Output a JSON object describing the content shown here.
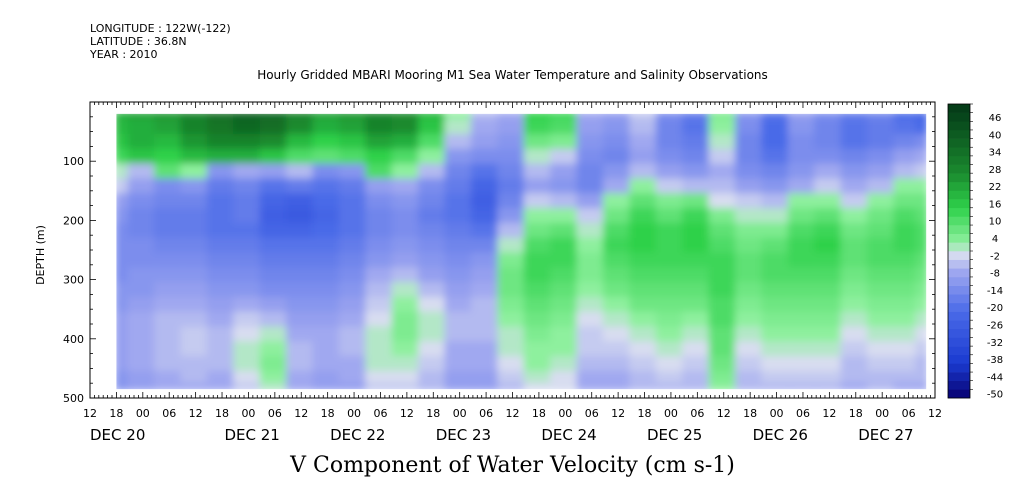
{
  "header": {
    "longitude": "LONGITUDE : 122W(-122)",
    "latitude": "LATITUDE : 36.8N",
    "year": "YEAR : 2010"
  },
  "chart_data": {
    "type": "heatmap",
    "title": "Hourly Gridded MBARI Mooring M1 Sea Water Temperature and Salinity Observations",
    "xlabel": "V Component of Water Velocity (cm s-1)",
    "ylabel": "DEPTH (m)",
    "ylim": [
      500,
      0
    ],
    "y_ticks": [
      "100",
      "200",
      "300",
      "400",
      "500"
    ],
    "x_range_hours": [
      -12,
      180
    ],
    "x_tick_labels": [
      "12",
      "18",
      "00",
      "06",
      "12",
      "18",
      "00",
      "06",
      "12",
      "18",
      "00",
      "06",
      "12",
      "18",
      "00",
      "06",
      "12",
      "18",
      "00",
      "06",
      "12",
      "18",
      "00",
      "06",
      "12",
      "18",
      "00",
      "06",
      "12",
      "18",
      "00",
      "06",
      "12"
    ],
    "date_labels": [
      "DEC 20",
      "DEC 21",
      "DEC 22",
      "DEC 23",
      "DEC 24",
      "DEC 25",
      "DEC 26",
      "DEC 27"
    ],
    "colorbar_labels": [
      "46",
      "40",
      "34",
      "28",
      "22",
      "16",
      "10",
      "4",
      "-2",
      "-8",
      "-14",
      "-20",
      "-26",
      "-32",
      "-38",
      "-44",
      "-50"
    ],
    "colorbar_range": [
      -50,
      52
    ],
    "colorbar_step": 3,
    "colors": {
      "max": "#053d18",
      "strong_pos": "#1a8a2e",
      "pos": "#2ed14a",
      "weak_pos": "#8ef09e",
      "zero": "#d8ddf0",
      "weak_neg": "#a0a8f0",
      "neg": "#4a6ae8",
      "strong_neg": "#1a3ad0",
      "min": "#060070"
    },
    "data_x_range_hours": [
      -6,
      178
    ],
    "data_depth_range": [
      20,
      485
    ],
    "grid_depths": [
      20,
      45,
      70,
      95,
      120,
      145,
      170,
      195,
      220,
      245,
      270,
      295,
      320,
      345,
      370,
      395,
      420,
      445,
      470,
      485
    ],
    "grid_hours": [
      -6,
      0,
      6,
      12,
      18,
      24,
      30,
      36,
      42,
      48,
      54,
      60,
      66,
      72,
      78,
      84,
      90,
      96,
      102,
      108,
      114,
      120,
      126,
      132,
      138,
      144,
      150,
      156,
      162,
      168,
      174,
      178
    ],
    "values": [
      [
        22,
        24,
        26,
        30,
        36,
        40,
        38,
        30,
        24,
        26,
        30,
        28,
        20,
        4,
        -4,
        -6,
        16,
        14,
        -6,
        -8,
        -2,
        -12,
        -16,
        6,
        -10,
        -18,
        -8,
        -12,
        -16,
        -14,
        -20,
        -22
      ],
      [
        20,
        22,
        24,
        30,
        34,
        38,
        36,
        28,
        22,
        24,
        30,
        28,
        18,
        2,
        -6,
        -8,
        14,
        12,
        -8,
        -10,
        -4,
        -14,
        -18,
        4,
        -12,
        -20,
        -10,
        -14,
        -18,
        -16,
        -18,
        -20
      ],
      [
        18,
        22,
        20,
        26,
        30,
        30,
        28,
        20,
        16,
        18,
        24,
        22,
        12,
        -4,
        -8,
        -10,
        8,
        6,
        -10,
        -12,
        -6,
        -14,
        -16,
        2,
        -14,
        -20,
        -12,
        -14,
        -18,
        -16,
        -14,
        -12
      ],
      [
        14,
        18,
        16,
        20,
        22,
        22,
        18,
        12,
        10,
        12,
        16,
        12,
        4,
        -10,
        -12,
        -12,
        2,
        -2,
        -12,
        -14,
        -8,
        -12,
        -14,
        -2,
        -14,
        -18,
        -12,
        -12,
        -14,
        -12,
        -8,
        -6
      ],
      [
        2,
        -4,
        10,
        4,
        -10,
        -6,
        -8,
        -4,
        -12,
        -10,
        12,
        4,
        -4,
        -14,
        -18,
        -14,
        -4,
        -8,
        -14,
        -10,
        -4,
        -8,
        -10,
        -6,
        -12,
        -14,
        -10,
        -6,
        -10,
        -8,
        -4,
        -2
      ],
      [
        -2,
        -8,
        -12,
        -10,
        -16,
        -14,
        -18,
        -16,
        -18,
        -16,
        -8,
        -6,
        -12,
        -16,
        -22,
        -16,
        -8,
        -10,
        -14,
        -6,
        4,
        -2,
        -4,
        -4,
        -8,
        -10,
        -6,
        -2,
        -6,
        -4,
        4,
        4
      ],
      [
        -8,
        -12,
        -14,
        -14,
        -18,
        -16,
        -22,
        -24,
        -20,
        -18,
        -12,
        -10,
        -14,
        -18,
        -24,
        -14,
        -2,
        -4,
        -8,
        4,
        10,
        6,
        8,
        0,
        -2,
        -4,
        4,
        4,
        -2,
        4,
        8,
        8
      ],
      [
        -10,
        -14,
        -16,
        -16,
        -18,
        -16,
        -24,
        -26,
        -22,
        -18,
        -14,
        -12,
        -16,
        -18,
        -22,
        -10,
        4,
        4,
        -2,
        8,
        14,
        10,
        14,
        6,
        2,
        2,
        8,
        10,
        4,
        8,
        12,
        10
      ],
      [
        -12,
        -14,
        -16,
        -16,
        -18,
        -18,
        -22,
        -22,
        -20,
        -18,
        -14,
        -12,
        -14,
        -16,
        -18,
        -4,
        8,
        10,
        2,
        12,
        16,
        14,
        16,
        10,
        6,
        6,
        12,
        14,
        8,
        10,
        14,
        12
      ],
      [
        -12,
        -12,
        -14,
        -14,
        -16,
        -16,
        -18,
        -18,
        -18,
        -16,
        -12,
        -10,
        -12,
        -14,
        -14,
        2,
        12,
        14,
        4,
        14,
        16,
        14,
        16,
        12,
        8,
        10,
        14,
        16,
        10,
        12,
        14,
        12
      ],
      [
        -12,
        -12,
        -12,
        -12,
        -14,
        -14,
        -16,
        -16,
        -16,
        -14,
        -10,
        -8,
        -10,
        -12,
        -10,
        6,
        14,
        14,
        6,
        12,
        14,
        14,
        14,
        14,
        10,
        12,
        14,
        14,
        10,
        12,
        12,
        10
      ],
      [
        -12,
        -10,
        -10,
        -10,
        -12,
        -12,
        -14,
        -14,
        -14,
        -12,
        -6,
        -4,
        -8,
        -10,
        -8,
        8,
        14,
        12,
        6,
        10,
        12,
        12,
        12,
        14,
        10,
        12,
        12,
        12,
        8,
        10,
        10,
        8
      ],
      [
        -10,
        -10,
        -8,
        -8,
        -10,
        -10,
        -12,
        -12,
        -12,
        -10,
        -4,
        2,
        -4,
        -8,
        -6,
        8,
        12,
        10,
        4,
        8,
        10,
        10,
        10,
        14,
        8,
        10,
        10,
        10,
        6,
        8,
        8,
        6
      ],
      [
        -10,
        -8,
        -6,
        -6,
        -8,
        -6,
        -8,
        -10,
        -10,
        -8,
        -2,
        4,
        0,
        -6,
        -4,
        6,
        10,
        8,
        2,
        4,
        8,
        8,
        8,
        12,
        6,
        8,
        8,
        8,
        4,
        6,
        6,
        4
      ],
      [
        -8,
        -6,
        -4,
        -4,
        -6,
        -2,
        -4,
        -8,
        -8,
        -6,
        0,
        6,
        2,
        -4,
        -4,
        4,
        8,
        6,
        0,
        2,
        4,
        6,
        4,
        12,
        4,
        6,
        6,
        6,
        2,
        4,
        4,
        2
      ],
      [
        -8,
        -6,
        -4,
        -2,
        -4,
        0,
        2,
        -6,
        -6,
        -4,
        2,
        6,
        2,
        -4,
        -4,
        2,
        6,
        4,
        -2,
        0,
        2,
        4,
        2,
        10,
        2,
        4,
        4,
        4,
        0,
        2,
        2,
        0
      ],
      [
        -8,
        -6,
        -4,
        -2,
        -4,
        2,
        4,
        -4,
        -6,
        -4,
        2,
        4,
        0,
        -6,
        -6,
        2,
        4,
        4,
        -2,
        -2,
        0,
        2,
        0,
        10,
        0,
        2,
        2,
        2,
        -2,
        0,
        0,
        -2
      ],
      [
        -8,
        -6,
        -4,
        -4,
        -4,
        2,
        6,
        -4,
        -6,
        -6,
        2,
        2,
        -2,
        -6,
        -6,
        0,
        4,
        2,
        -4,
        -4,
        -2,
        0,
        -2,
        8,
        -2,
        0,
        0,
        0,
        -4,
        -2,
        -2,
        -4
      ],
      [
        -10,
        -8,
        -6,
        -4,
        -6,
        0,
        4,
        -6,
        -8,
        -6,
        0,
        0,
        -4,
        -8,
        -8,
        -2,
        2,
        0,
        -6,
        -6,
        -4,
        -2,
        -4,
        6,
        -4,
        -2,
        -2,
        -2,
        -4,
        -4,
        -4,
        -4
      ],
      [
        -10,
        -8,
        -6,
        -6,
        -6,
        -2,
        2,
        -6,
        -8,
        -8,
        -2,
        -2,
        -4,
        -8,
        -8,
        -4,
        0,
        0,
        -6,
        -6,
        -4,
        -4,
        -4,
        4,
        -4,
        -4,
        -4,
        -4,
        -6,
        -4,
        -6,
        -6
      ]
    ]
  }
}
